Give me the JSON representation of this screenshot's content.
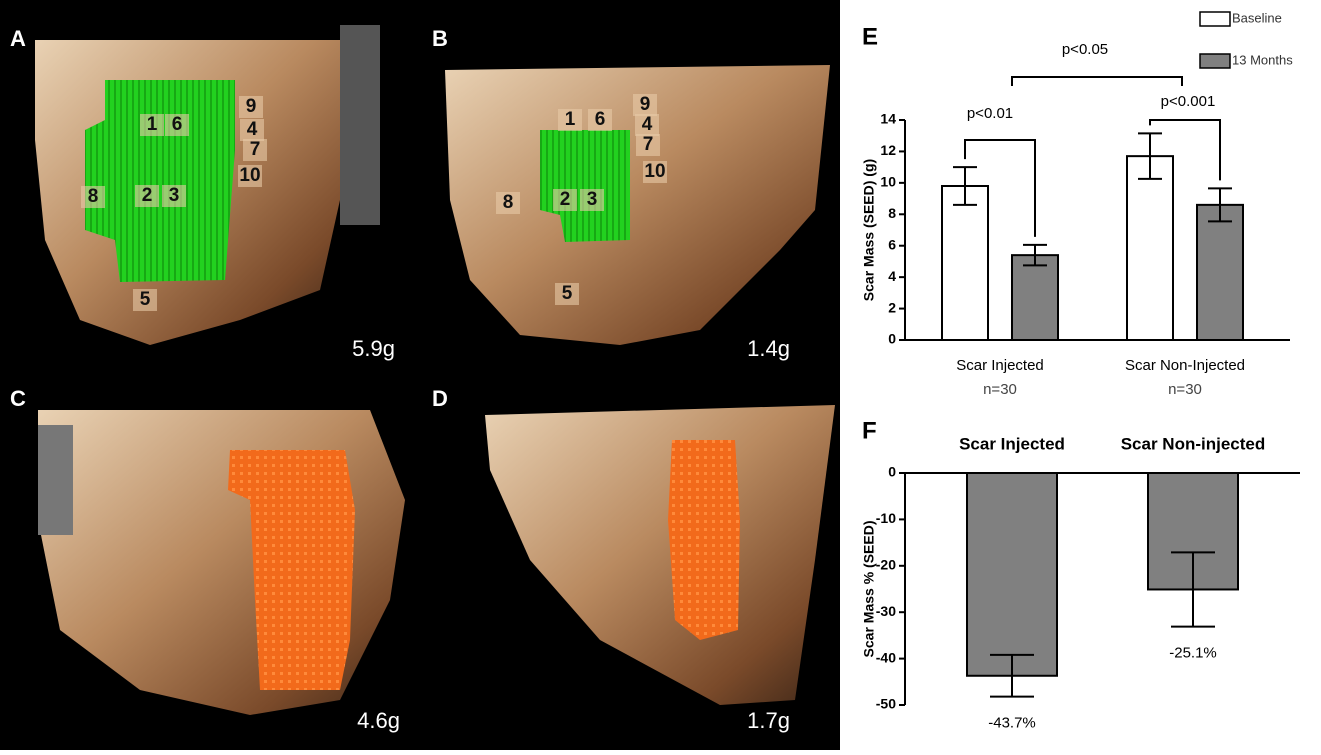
{
  "panels": [
    {
      "label": "A",
      "mass": "5.9g",
      "segments": [
        "1",
        "6",
        "9",
        "4",
        "7",
        "10",
        "8",
        "2",
        "3",
        "5"
      ]
    },
    {
      "label": "B",
      "mass": "1.4g",
      "segments": [
        "1",
        "6",
        "9",
        "4",
        "7",
        "10",
        "8",
        "2",
        "3",
        "5"
      ]
    },
    {
      "label": "C",
      "mass": "4.6g"
    },
    {
      "label": "D",
      "mass": "1.7g"
    }
  ],
  "chart_data": [
    {
      "type": "grouped-bar",
      "panel": "E",
      "y_label": "Scar Mass (SEED) (g)",
      "categories": [
        "Scar Injected",
        "Scar Non-Injected"
      ],
      "category_notes": [
        "n=30",
        "n=30"
      ],
      "series": [
        {
          "name": "Baseline",
          "color": "#ffffff",
          "values": [
            9.8,
            11.7
          ],
          "errors": [
            1.2,
            1.45
          ]
        },
        {
          "name": "13 Months",
          "color": "#808080",
          "values": [
            5.4,
            8.6
          ],
          "errors": [
            0.65,
            1.05
          ]
        }
      ],
      "annotations": [
        "p<0.05",
        "p<0.01",
        "p<0.001"
      ],
      "ylim": [
        0,
        14
      ],
      "yticks": [
        0,
        2,
        4,
        6,
        8,
        10,
        12,
        14
      ],
      "legend": "top-right"
    },
    {
      "type": "bar",
      "panel": "F",
      "y_label": "Scar Mass % (SEED)",
      "categories": [
        "Scar Injected",
        "Scar Non-injected"
      ],
      "values": [
        -43.7,
        -25.1
      ],
      "value_labels": [
        "-43.7%",
        "-25.1%"
      ],
      "errors": [
        4.5,
        8
      ],
      "color": "#808080",
      "ylim": [
        -50,
        0
      ],
      "yticks": [
        0,
        -10,
        -20,
        -30,
        -40,
        -50
      ]
    }
  ]
}
